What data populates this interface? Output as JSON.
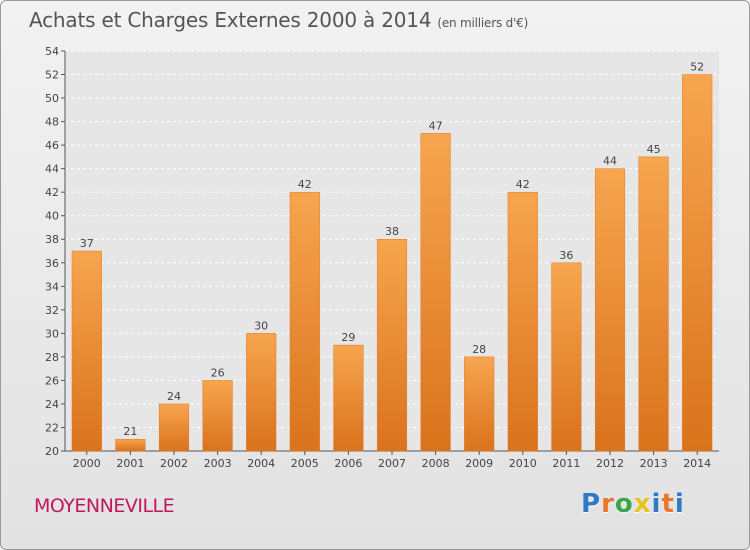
{
  "header": {
    "title": "Achats et Charges Externes 2000 à 2014",
    "unit": "(en milliers d'€)"
  },
  "footer": {
    "commune": "MOYENNEVILLE",
    "logo_letters": [
      "P",
      "r",
      "o",
      "x",
      "i",
      "t",
      "i"
    ],
    "logo_colors": [
      "#2e7bc4",
      "#e8762c",
      "#3aa64a",
      "#e8c21e",
      "#2e7bc4",
      "#e8762c",
      "#2e7bc4"
    ]
  },
  "chart_data": {
    "type": "bar",
    "title": "Achats et Charges Externes 2000 à 2014",
    "subtitle": "(en milliers d'€)",
    "categories": [
      "2000",
      "2001",
      "2002",
      "2003",
      "2004",
      "2005",
      "2006",
      "2007",
      "2008",
      "2009",
      "2010",
      "2011",
      "2012",
      "2013",
      "2014"
    ],
    "values": [
      37,
      21,
      24,
      26,
      30,
      42,
      29,
      38,
      47,
      28,
      42,
      36,
      44,
      45,
      52
    ],
    "ylim": [
      20,
      54
    ],
    "yticks": [
      20,
      22,
      24,
      26,
      28,
      30,
      32,
      34,
      36,
      38,
      40,
      42,
      44,
      46,
      48,
      50,
      52,
      54
    ],
    "grid": true,
    "bar_color": "#f28a2e",
    "bar_color_light": "#f7a54f",
    "bar_color_dark": "#d9731c"
  }
}
